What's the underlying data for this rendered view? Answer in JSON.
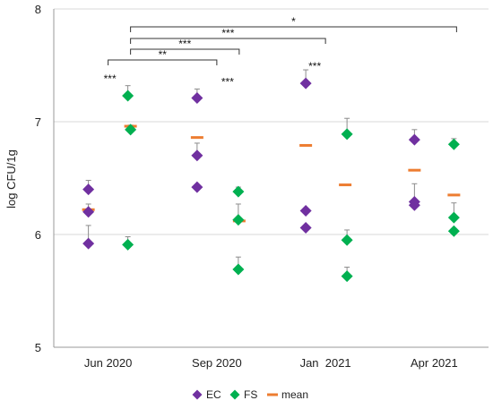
{
  "chart_data": {
    "type": "scatter",
    "ylabel": "log CFU/1g",
    "xlabel": "",
    "ylim": [
      5,
      8
    ],
    "yticks": [
      "5",
      "6",
      "7",
      "8"
    ],
    "categories": [
      "Jun 2020",
      "Sep 2020",
      "Jan  2021",
      "Apr 2021"
    ],
    "grid": "horizontal",
    "legend_position": "bottom",
    "series": [
      {
        "name": "EC",
        "color": "#7030A0",
        "marker": "diamond",
        "points": [
          {
            "category": "Jun 2020",
            "y": 6.4,
            "err": 0.08
          },
          {
            "category": "Jun 2020",
            "y": 6.2,
            "err": 0.07
          },
          {
            "category": "Jun 2020",
            "y": 5.92,
            "err": 0.16
          },
          {
            "category": "Sep 2020",
            "y": 7.21,
            "err": 0.08
          },
          {
            "category": "Sep 2020",
            "y": 6.7,
            "err": 0.11
          },
          {
            "category": "Sep 2020",
            "y": 6.42,
            "err": 0.0
          },
          {
            "category": "Jan  2021",
            "y": 7.34,
            "err": 0.12
          },
          {
            "category": "Jan  2021",
            "y": 6.21,
            "err": 0.0
          },
          {
            "category": "Jan  2021",
            "y": 6.06,
            "err": 0.0
          },
          {
            "category": "Apr 2021",
            "y": 6.84,
            "err": 0.09
          },
          {
            "category": "Apr 2021",
            "y": 6.29,
            "err": 0.16
          },
          {
            "category": "Apr 2021",
            "y": 6.26,
            "err": 0.0
          }
        ]
      },
      {
        "name": "FS",
        "color": "#00B050",
        "marker": "diamond",
        "points": [
          {
            "category": "Jun 2020",
            "y": 7.23,
            "err": 0.09
          },
          {
            "category": "Jun 2020",
            "y": 6.93,
            "err": 0.04
          },
          {
            "category": "Jun 2020",
            "y": 5.91,
            "err": 0.07
          },
          {
            "category": "Sep 2020",
            "y": 6.38,
            "err": 0.04
          },
          {
            "category": "Sep 2020",
            "y": 6.13,
            "err": 0.14
          },
          {
            "category": "Sep 2020",
            "y": 5.69,
            "err": 0.11
          },
          {
            "category": "Jan  2021",
            "y": 6.89,
            "err": 0.14
          },
          {
            "category": "Jan  2021",
            "y": 5.95,
            "err": 0.09
          },
          {
            "category": "Jan  2021",
            "y": 5.63,
            "err": 0.08
          },
          {
            "category": "Apr 2021",
            "y": 6.8,
            "err": 0.05
          },
          {
            "category": "Apr 2021",
            "y": 6.15,
            "err": 0.13
          },
          {
            "category": "Apr 2021",
            "y": 6.03,
            "err": 0.0
          }
        ]
      },
      {
        "name": "mean",
        "color": "#ED7D31",
        "marker": "dash",
        "points": [
          {
            "category": "Jun 2020",
            "y": 6.96
          },
          {
            "category": "Jun 2020",
            "y": 6.22
          },
          {
            "category": "Sep 2020",
            "y": 6.86
          },
          {
            "category": "Sep 2020",
            "y": 6.12
          },
          {
            "category": "Jan  2021",
            "y": 6.79
          },
          {
            "category": "Jan  2021",
            "y": 6.44
          },
          {
            "category": "Apr 2021",
            "y": 6.57
          },
          {
            "category": "Apr 2021",
            "y": 6.35
          }
        ]
      }
    ],
    "annotations": [
      {
        "text": "***",
        "category": "Jun 2020",
        "y": 7.35
      },
      {
        "text": "***",
        "category": "Sep 2020",
        "y": 7.32
      },
      {
        "text": "***",
        "category": "Jan  2021",
        "y": 7.46
      }
    ],
    "brackets": [
      {
        "from": "Jun 2020",
        "to": "Apr 2021",
        "label": "*"
      },
      {
        "from": "Jun 2020",
        "to": "Jan  2021",
        "label": "***"
      },
      {
        "from": "Jun 2020",
        "to": "Sep 2020",
        "label": "***"
      },
      {
        "from": "Jun 2020",
        "to": "Sep 2020",
        "label": "**"
      }
    ]
  }
}
